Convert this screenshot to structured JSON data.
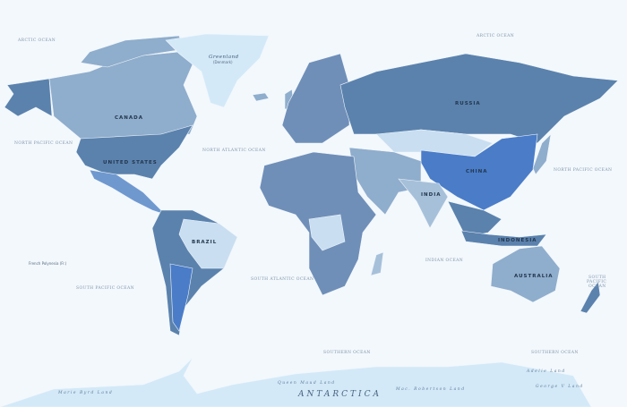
{
  "colors": {
    "ocean": "#f3f8fc",
    "dark": "#5b82ad",
    "mid": "#8fadcc",
    "light": "#c9def0",
    "bright": "#4a7cc8",
    "ice": "#d3e9f8"
  },
  "oceans": {
    "arctic_west": "ARCTIC OCEAN",
    "arctic_east": "ARCTIC OCEAN",
    "north_pacific_west": "NORTH PACIFIC OCEAN",
    "north_pacific_east": "NORTH PACIFIC OCEAN",
    "north_atlantic": "NORTH ATLANTIC OCEAN",
    "south_atlantic": "SOUTH ATLANTIC OCEAN",
    "south_pacific_west": "SOUTH PACIFIC OCEAN",
    "south_pacific_east": [
      "SOUTH",
      "PACIFIC",
      "OCEAN"
    ],
    "indian": "INDIAN OCEAN",
    "southern_west": "SOUTHERN OCEAN",
    "southern_east": "SOUTHERN OCEAN"
  },
  "countries": {
    "canada": "CANADA",
    "united_states": "UNITED STATES",
    "russia": "RUSSIA",
    "china": "CHINA",
    "india": "INDIA",
    "brazil": "BRAZIL",
    "indonesia": "INDONESIA",
    "australia": "AUSTRALIA"
  },
  "regions": {
    "greenland": "Greenland",
    "greenland_note": "(Denmark)",
    "antarctica": "ANTARCTICA",
    "marie_byrd": "Marie Byrd Land",
    "queen_maud": "Queen Maud Land",
    "mac_robertson": "Mac. Robertson Land",
    "george_v": "George V Land",
    "adelie": "Adelie Land",
    "french_polynesia": "French Polynesia (Fr.)"
  }
}
